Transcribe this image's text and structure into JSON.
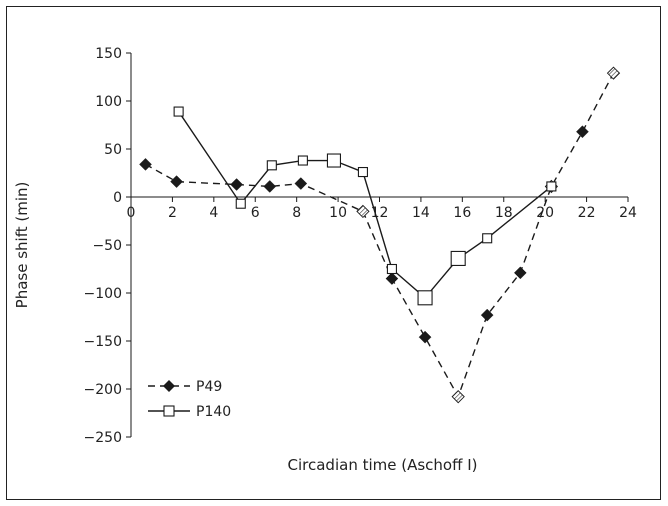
{
  "chart_data": {
    "type": "line",
    "xlabel": "Circadian time (Aschoff I)",
    "ylabel": "Phase shift (min)",
    "xlim": [
      0,
      24
    ],
    "ylim": [
      -250,
      150
    ],
    "x_ticks": [
      0,
      2,
      4,
      6,
      8,
      10,
      12,
      14,
      16,
      18,
      20,
      22,
      24
    ],
    "y_ticks": [
      150,
      100,
      50,
      0,
      -50,
      -100,
      -150,
      -200,
      -250
    ],
    "x_tick_labels": [
      "0",
      "2",
      "4",
      "6",
      "8",
      "10",
      "12",
      "14",
      "16",
      "18",
      "20",
      "22",
      "24"
    ],
    "y_tick_labels": [
      "150",
      "100",
      "50",
      "0",
      "−50",
      "−100",
      "−150",
      "−200",
      "−250"
    ],
    "grid": false,
    "legend_position": "bottom-left",
    "series": [
      {
        "name": "P49",
        "line_style": "dashed",
        "marker": "diamond",
        "color": "#1a1a1a",
        "points": [
          {
            "x": 0.7,
            "y": 34,
            "hatched": false
          },
          {
            "x": 2.2,
            "y": 16,
            "hatched": false
          },
          {
            "x": 5.1,
            "y": 13,
            "hatched": false
          },
          {
            "x": 6.7,
            "y": 11,
            "hatched": false
          },
          {
            "x": 8.2,
            "y": 14,
            "hatched": false
          },
          {
            "x": 11.2,
            "y": -15,
            "hatched": true
          },
          {
            "x": 12.6,
            "y": -85,
            "hatched": false
          },
          {
            "x": 14.2,
            "y": -146,
            "hatched": false
          },
          {
            "x": 15.8,
            "y": -208,
            "hatched": true
          },
          {
            "x": 17.2,
            "y": -123,
            "hatched": false
          },
          {
            "x": 18.8,
            "y": -79,
            "hatched": false
          },
          {
            "x": 20.3,
            "y": 11,
            "hatched": true
          },
          {
            "x": 21.8,
            "y": 68,
            "hatched": false
          },
          {
            "x": 23.3,
            "y": 129,
            "hatched": true
          }
        ]
      },
      {
        "name": "P140",
        "line_style": "solid",
        "marker": "square",
        "color": "#1a1a1a",
        "points": [
          {
            "x": 2.3,
            "y": 89,
            "size": 9
          },
          {
            "x": 5.3,
            "y": -7,
            "size": 9
          },
          {
            "x": 6.8,
            "y": 33,
            "size": 9
          },
          {
            "x": 8.3,
            "y": 38,
            "size": 9
          },
          {
            "x": 9.8,
            "y": 38,
            "size": 13
          },
          {
            "x": 11.2,
            "y": 26,
            "size": 9
          },
          {
            "x": 12.6,
            "y": -75,
            "size": 9
          },
          {
            "x": 14.2,
            "y": -105,
            "size": 14
          },
          {
            "x": 15.8,
            "y": -64,
            "size": 14
          },
          {
            "x": 17.2,
            "y": -43,
            "size": 9
          },
          {
            "x": 20.3,
            "y": 11,
            "size": 9
          }
        ]
      }
    ]
  }
}
